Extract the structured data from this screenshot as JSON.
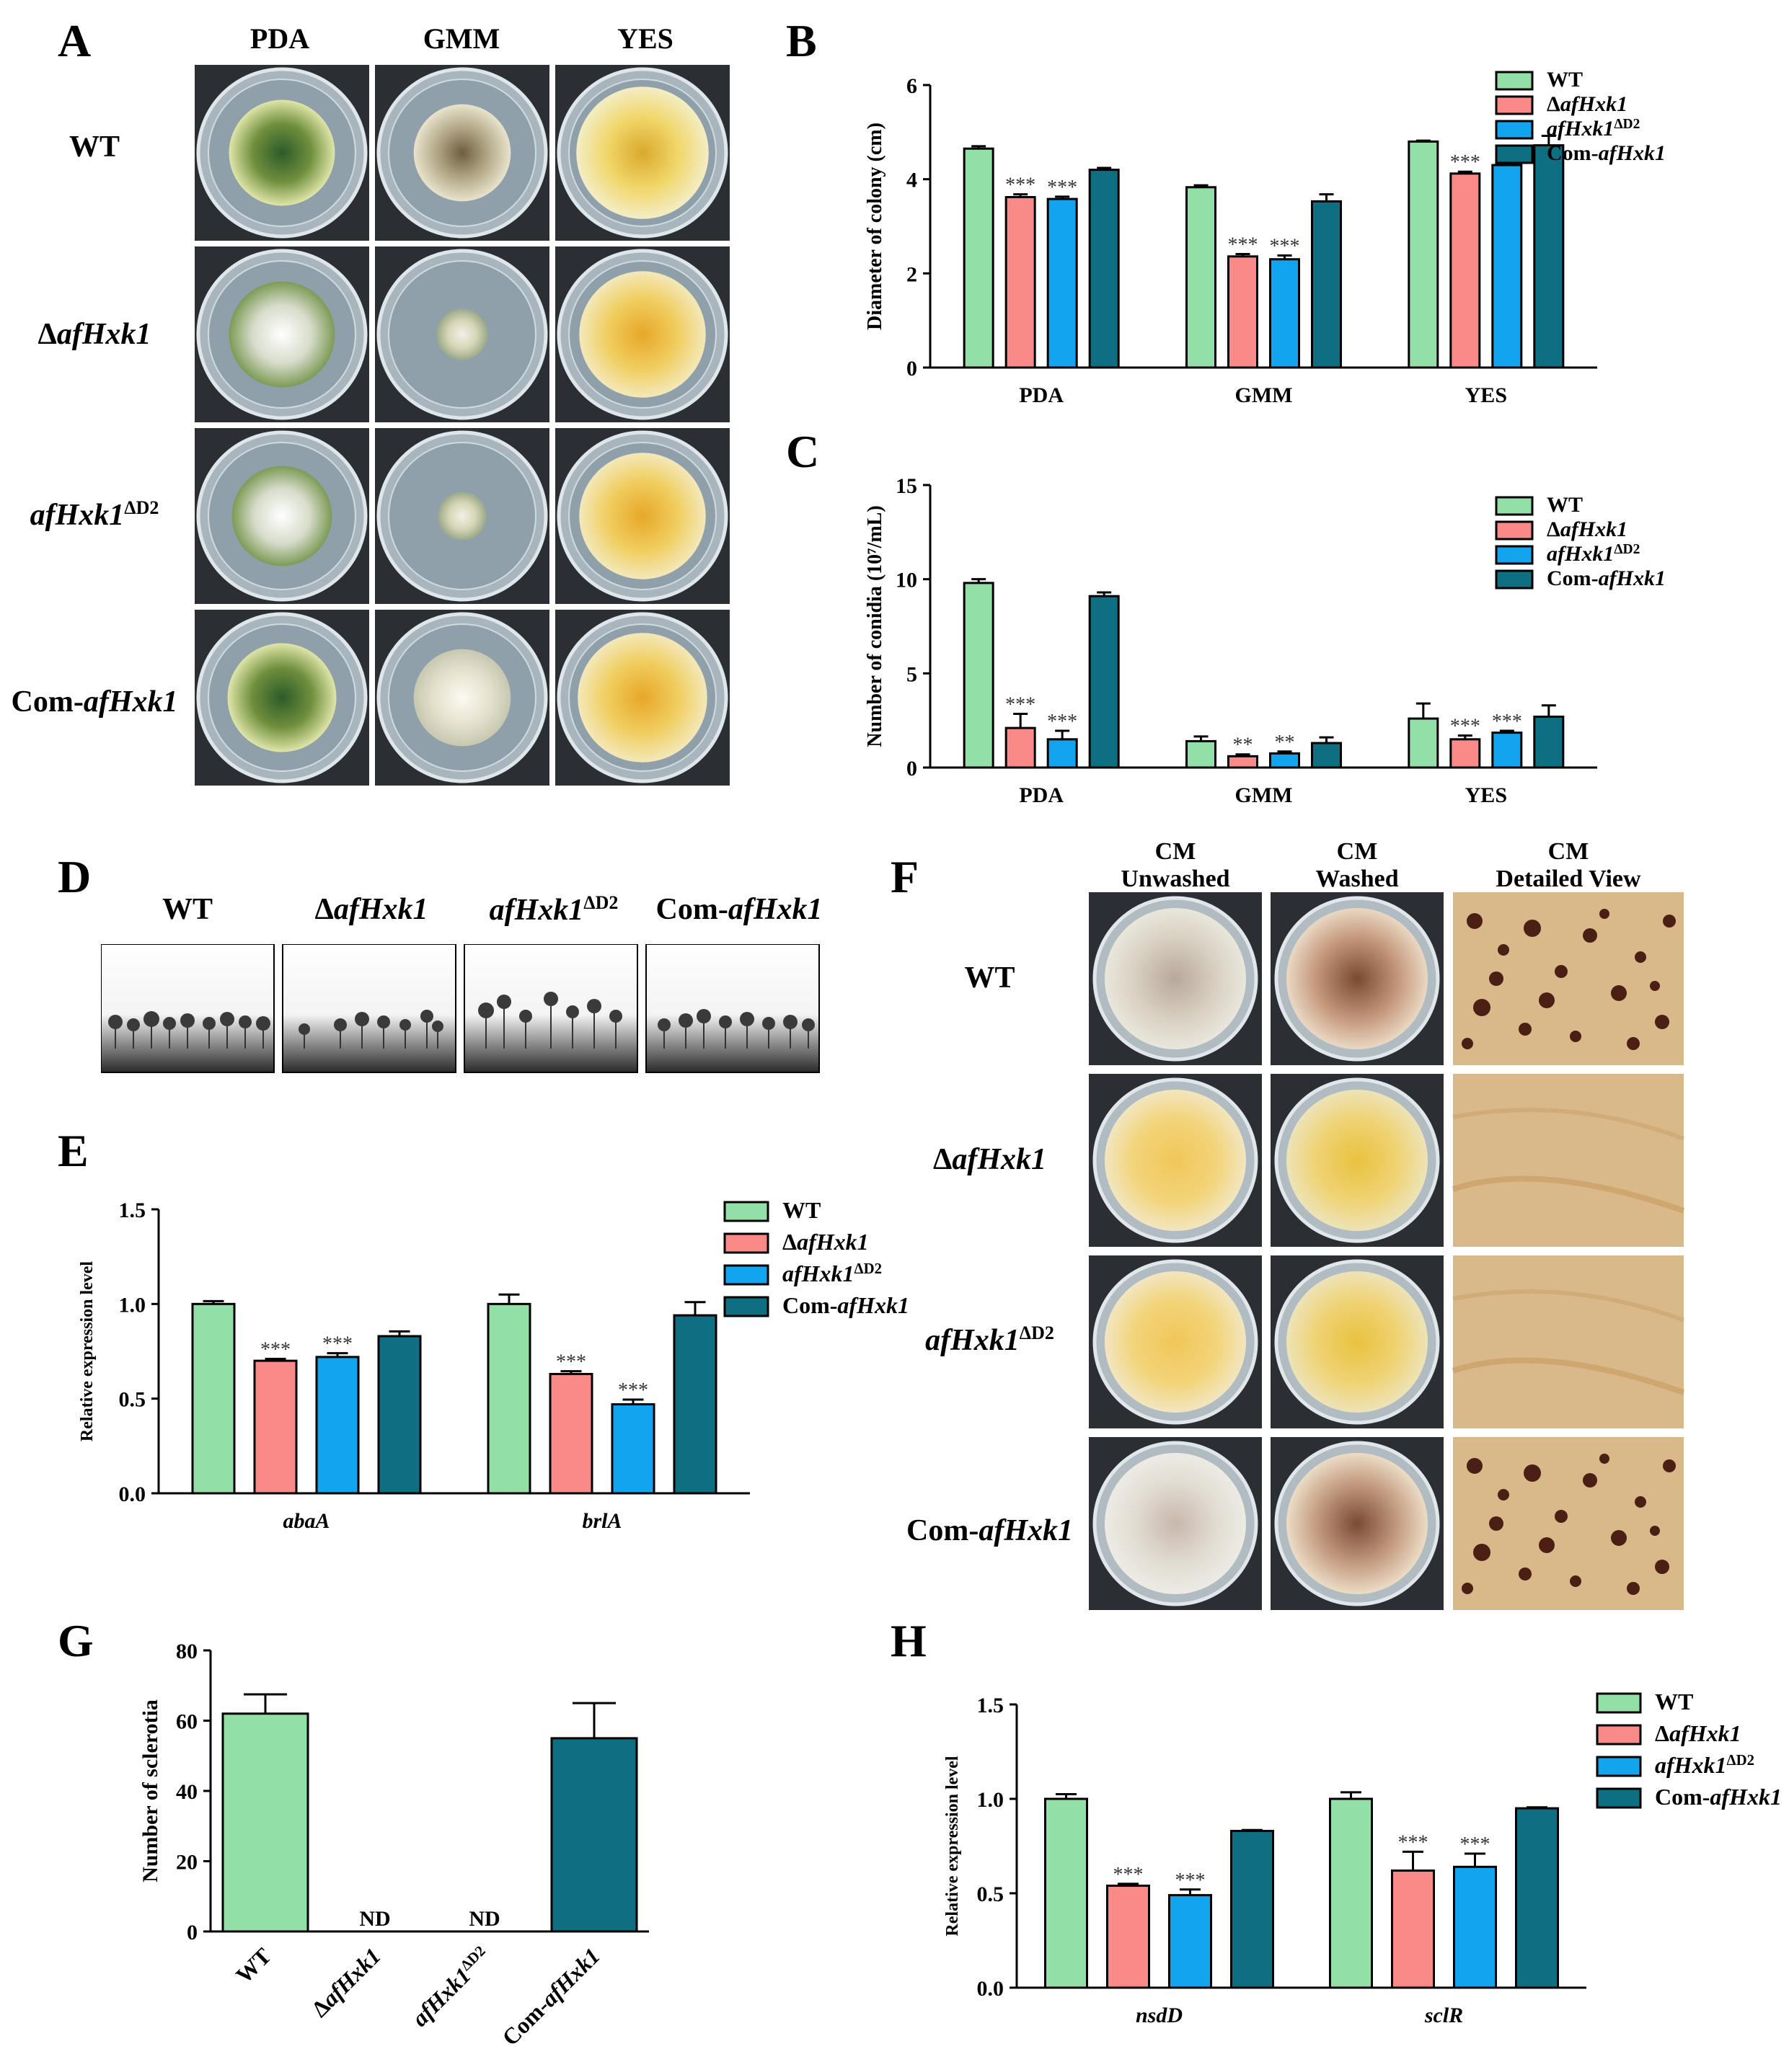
{
  "panels": {
    "A": "A",
    "B": "B",
    "C": "C",
    "D": "D",
    "E": "E",
    "F": "F",
    "G": "G",
    "H": "H"
  },
  "colors": {
    "WT": "#93dfa8",
    "dafHxk1": "#f98a87",
    "afHxk1D2": "#12a4ef",
    "Com": "#0e6f83"
  },
  "legend": [
    {
      "pre": "",
      "it": "",
      "post": "WT",
      "sup": ""
    },
    {
      "pre": "Δ",
      "it": "afHxk1",
      "post": "",
      "sup": ""
    },
    {
      "pre": "",
      "it": "afHxk1",
      "post": "",
      "sup": "ΔD2"
    },
    {
      "pre": "Com-",
      "it": "afHxk1",
      "post": "",
      "sup": ""
    }
  ],
  "panelA": {
    "columns": [
      "PDA",
      "GMM",
      "YES"
    ],
    "rows": [
      {
        "pre": "",
        "it": "",
        "post": "WT",
        "sup": ""
      },
      {
        "pre": "Δ",
        "it": "afHxk1",
        "post": "",
        "sup": ""
      },
      {
        "pre": "",
        "it": "afHxk1",
        "post": "",
        "sup": "ΔD2"
      },
      {
        "pre": "Com-",
        "it": "afHxk1",
        "post": "",
        "sup": ""
      }
    ]
  },
  "panelD": {
    "labels": [
      {
        "pre": "",
        "it": "",
        "post": "WT",
        "sup": ""
      },
      {
        "pre": "Δ",
        "it": "afHxk1",
        "post": "",
        "sup": ""
      },
      {
        "pre": "",
        "it": "afHxk1",
        "post": "",
        "sup": "ΔD2"
      },
      {
        "pre": "Com-",
        "it": "afHxk1",
        "post": "",
        "sup": ""
      }
    ]
  },
  "panelF": {
    "columns": [
      [
        "CM",
        "Unwashed"
      ],
      [
        "CM",
        "Washed"
      ],
      [
        "CM",
        "Detailed View"
      ]
    ],
    "rows": [
      {
        "pre": "",
        "it": "",
        "post": "WT",
        "sup": ""
      },
      {
        "pre": "Δ",
        "it": "afHxk1",
        "post": "",
        "sup": ""
      },
      {
        "pre": "",
        "it": "afHxk1",
        "post": "",
        "sup": "ΔD2"
      },
      {
        "pre": "Com-",
        "it": "afHxk1",
        "post": "",
        "sup": ""
      }
    ]
  },
  "chart_data": [
    {
      "id": "B",
      "type": "bar",
      "ylabel": "Diameter of colony (cm)",
      "ylim": [
        0,
        6
      ],
      "ticks": [
        0,
        2,
        4,
        6
      ],
      "categories": [
        "PDA",
        "GMM",
        "YES"
      ],
      "italic_categories": false,
      "series": [
        {
          "name": "WT",
          "values": [
            4.65,
            3.83,
            4.8
          ],
          "errors": [
            0.05,
            0.04,
            0.02
          ],
          "stars": [
            "",
            "",
            ""
          ]
        },
        {
          "name": "ΔafHxk1",
          "values": [
            3.62,
            2.36,
            4.12
          ],
          "errors": [
            0.06,
            0.05,
            0.04
          ],
          "stars": [
            "***",
            "***",
            "***"
          ]
        },
        {
          "name": "afHxk1ΔD2",
          "values": [
            3.58,
            2.3,
            4.3
          ],
          "errors": [
            0.05,
            0.08,
            0.06
          ],
          "stars": [
            "***",
            "***",
            "**"
          ]
        },
        {
          "name": "Com-afHxk1",
          "values": [
            4.2,
            3.53,
            4.72
          ],
          "errors": [
            0.04,
            0.15,
            0.2
          ],
          "stars": [
            "",
            "",
            ""
          ]
        }
      ]
    },
    {
      "id": "C",
      "type": "bar",
      "ylabel": "Number of conidia (10⁷/mL)",
      "ylim": [
        0,
        15
      ],
      "ticks": [
        0,
        5,
        10,
        15
      ],
      "categories": [
        "PDA",
        "GMM",
        "YES"
      ],
      "italic_categories": false,
      "series": [
        {
          "name": "WT",
          "values": [
            9.8,
            1.4,
            2.6
          ],
          "errors": [
            0.2,
            0.25,
            0.8
          ],
          "stars": [
            "",
            "",
            ""
          ]
        },
        {
          "name": "ΔafHxk1",
          "values": [
            2.1,
            0.6,
            1.5
          ],
          "errors": [
            0.75,
            0.1,
            0.2
          ],
          "stars": [
            "***",
            "**",
            "***"
          ]
        },
        {
          "name": "afHxk1ΔD2",
          "values": [
            1.5,
            0.75,
            1.85
          ],
          "errors": [
            0.45,
            0.1,
            0.1
          ],
          "stars": [
            "***",
            "**",
            "***"
          ]
        },
        {
          "name": "Com-afHxk1",
          "values": [
            9.1,
            1.3,
            2.7
          ],
          "errors": [
            0.2,
            0.3,
            0.6
          ],
          "stars": [
            "",
            "",
            ""
          ]
        }
      ]
    },
    {
      "id": "E",
      "type": "bar",
      "ylabel": "Relative expression level",
      "ylim": [
        0,
        1.5
      ],
      "ticks": [
        "0.0",
        "0.5",
        "1.0",
        "1.5"
      ],
      "categories": [
        "abaA",
        "brlA"
      ],
      "italic_categories": true,
      "series": [
        {
          "name": "WT",
          "values": [
            1.0,
            1.0
          ],
          "errors": [
            0.015,
            0.05
          ],
          "stars": [
            "",
            ""
          ]
        },
        {
          "name": "ΔafHxk1",
          "values": [
            0.7,
            0.63
          ],
          "errors": [
            0.01,
            0.015
          ],
          "stars": [
            "***",
            "***"
          ]
        },
        {
          "name": "afHxk1ΔD2",
          "values": [
            0.72,
            0.47
          ],
          "errors": [
            0.02,
            0.025
          ],
          "stars": [
            "***",
            "***"
          ]
        },
        {
          "name": "Com-afHxk1",
          "values": [
            0.83,
            0.94
          ],
          "errors": [
            0.025,
            0.07
          ],
          "stars": [
            "",
            ""
          ]
        }
      ]
    },
    {
      "id": "G",
      "type": "bar",
      "ylabel": "Number of sclerotia",
      "ylim": [
        0,
        80
      ],
      "ticks": [
        0,
        20,
        40,
        60,
        80
      ],
      "categories": [
        {
          "pre": "",
          "it": "",
          "post": "WT",
          "sup": ""
        },
        {
          "pre": "Δ",
          "it": "afHxk1",
          "post": "",
          "sup": ""
        },
        {
          "pre": "",
          "it": "afHxk1",
          "post": "",
          "sup": "ΔD2"
        },
        {
          "pre": "Com-",
          "it": "afHxk1",
          "post": "",
          "sup": ""
        }
      ],
      "values": [
        62,
        0,
        0,
        55
      ],
      "errors": [
        5.5,
        0,
        0,
        10
      ],
      "annotations": [
        "",
        "ND",
        "ND",
        ""
      ]
    },
    {
      "id": "H",
      "type": "bar",
      "ylabel": "Relative expression level",
      "ylim": [
        0,
        1.5
      ],
      "ticks": [
        "0.0",
        "0.5",
        "1.0",
        "1.5"
      ],
      "categories": [
        "nsdD",
        "sclR"
      ],
      "italic_categories": true,
      "series": [
        {
          "name": "WT",
          "values": [
            1.0,
            1.0
          ],
          "errors": [
            0.025,
            0.035
          ],
          "stars": [
            "",
            ""
          ]
        },
        {
          "name": "ΔafHxk1",
          "values": [
            0.54,
            0.62
          ],
          "errors": [
            0.01,
            0.1
          ],
          "stars": [
            "***",
            "***"
          ]
        },
        {
          "name": "afHxk1ΔD2",
          "values": [
            0.49,
            0.64
          ],
          "errors": [
            0.03,
            0.07
          ],
          "stars": [
            "***",
            "***"
          ]
        },
        {
          "name": "Com-afHxk1",
          "values": [
            0.83,
            0.95
          ],
          "errors": [
            0.005,
            0.005
          ],
          "stars": [
            "",
            ""
          ]
        }
      ]
    }
  ]
}
